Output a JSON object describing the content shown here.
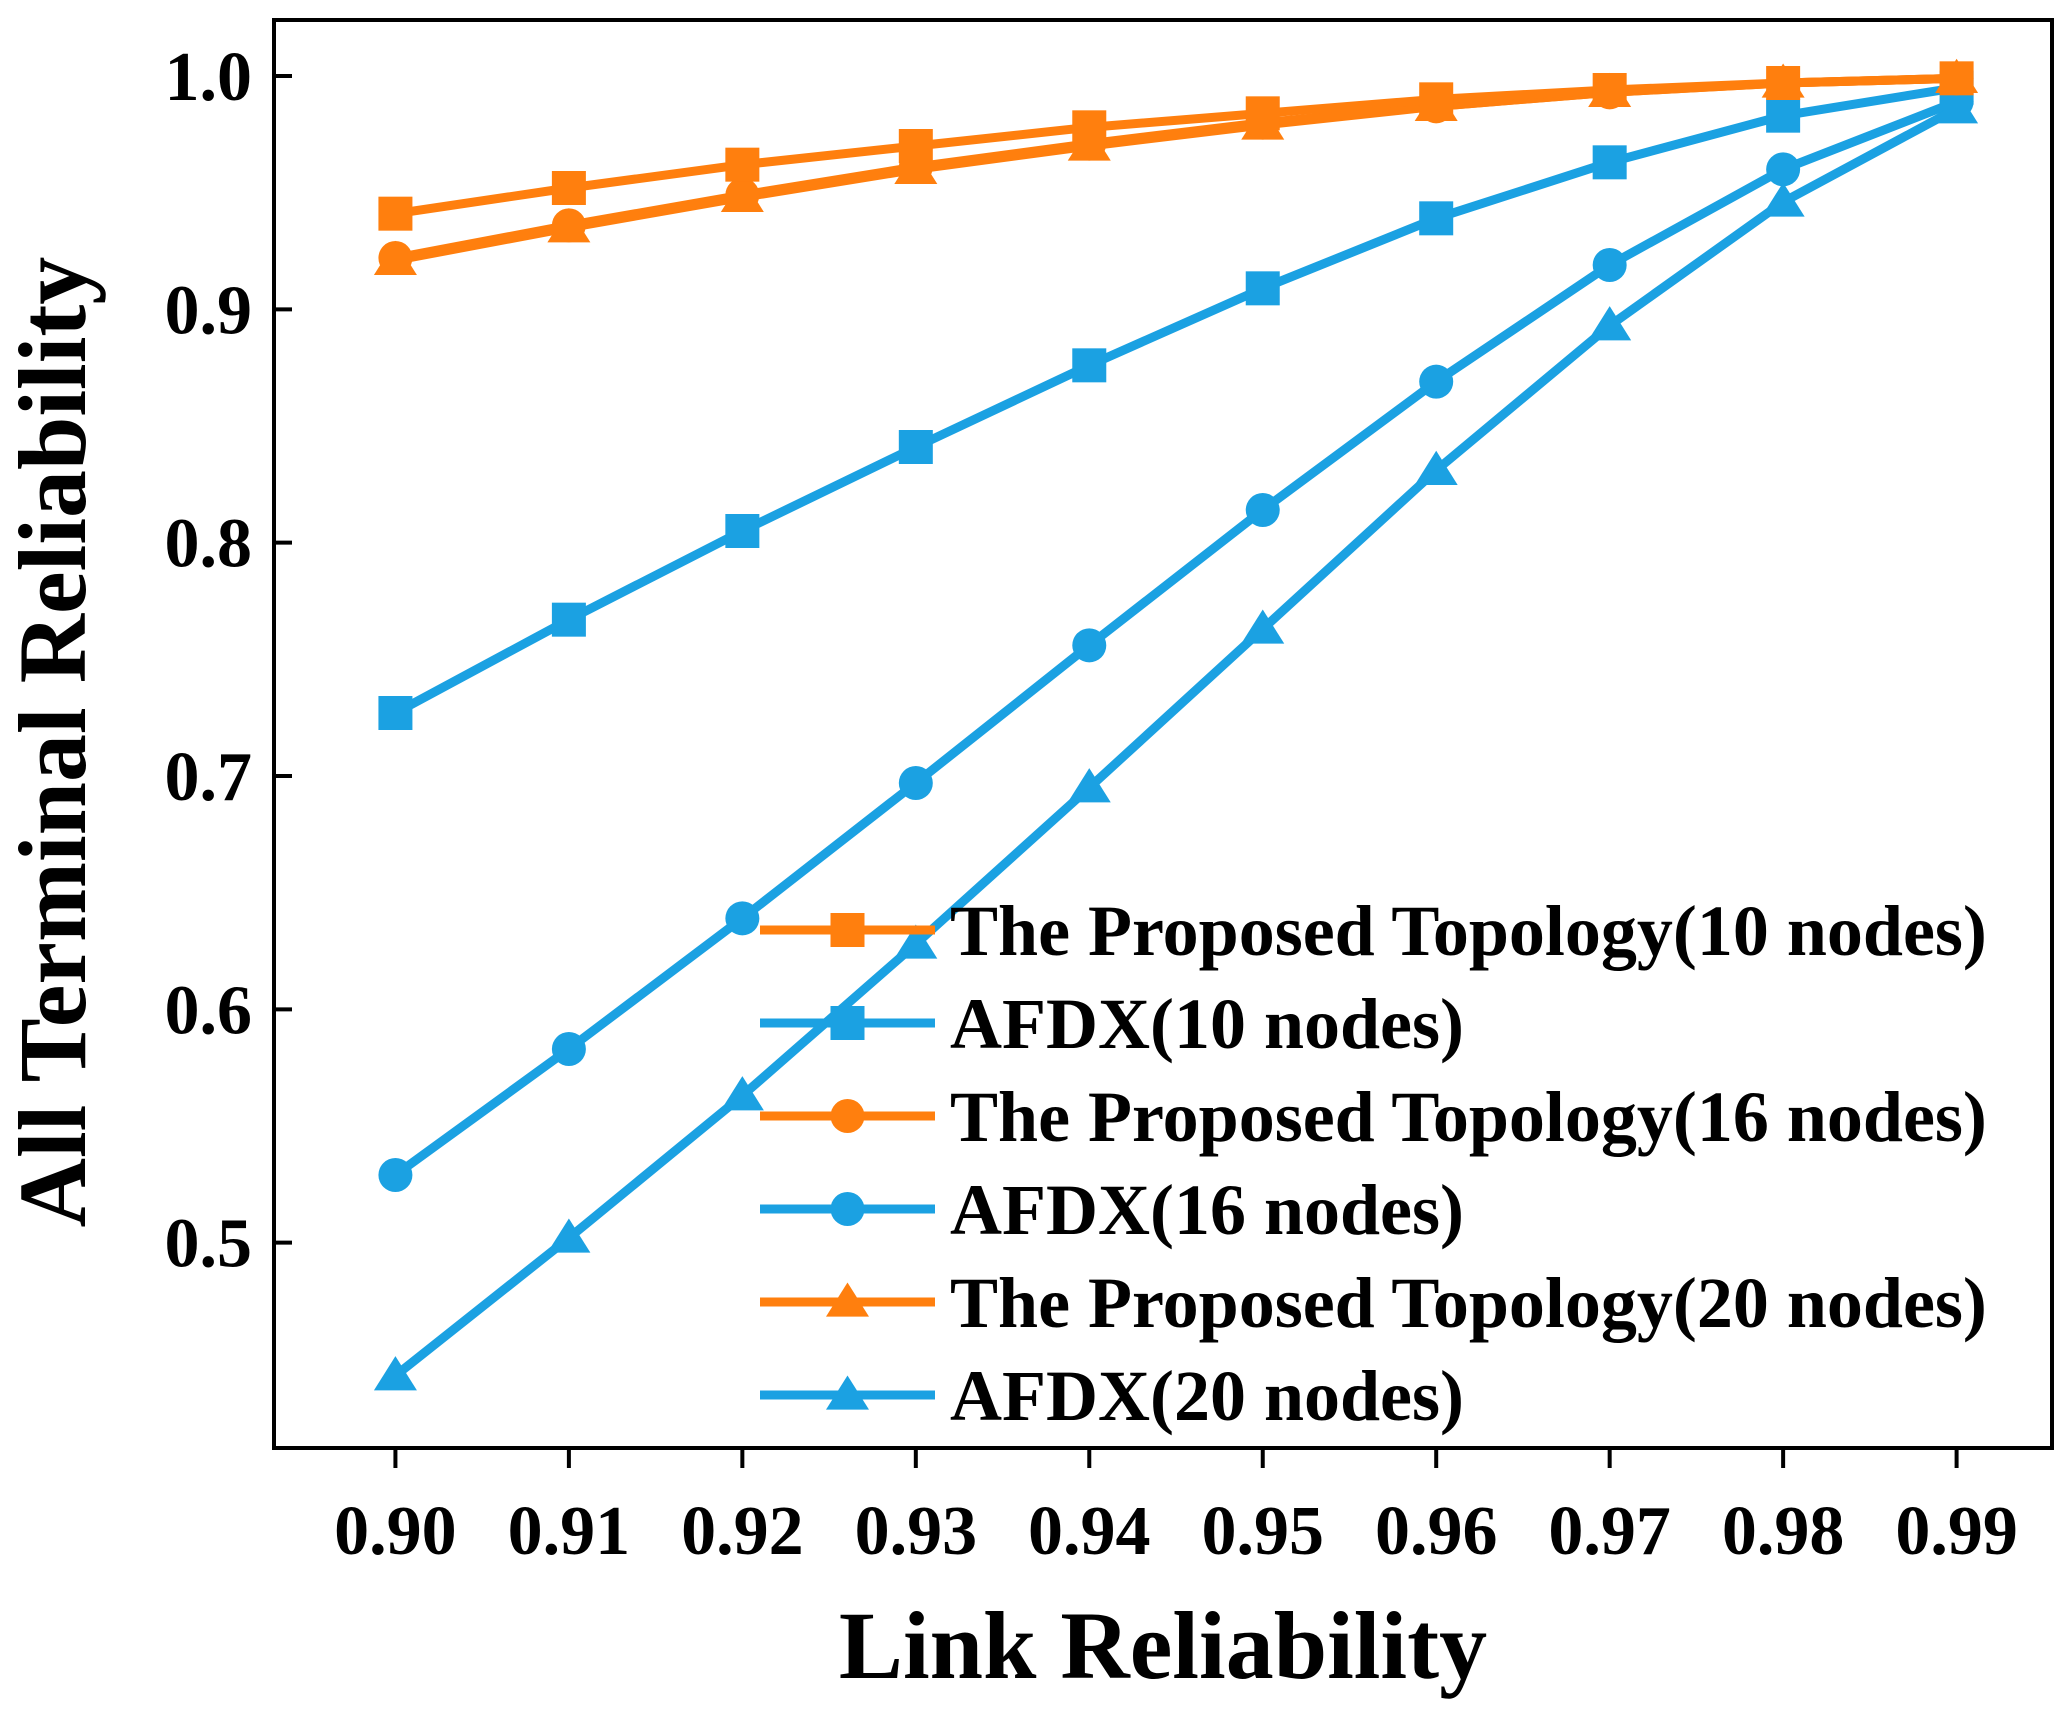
{
  "chart_data": {
    "type": "line",
    "title": "",
    "xlabel": "Link Reliability",
    "ylabel": "All Terminal Reliability",
    "x": [
      0.9,
      0.91,
      0.92,
      0.93,
      0.94,
      0.95,
      0.96,
      0.97,
      0.98,
      0.99
    ],
    "x_tick_labels": [
      "0.90",
      "0.91",
      "0.92",
      "0.93",
      "0.94",
      "0.95",
      "0.96",
      "0.97",
      "0.98",
      "0.99"
    ],
    "y_ticks": [
      0.5,
      0.6,
      0.7,
      0.8,
      0.9,
      1.0
    ],
    "y_tick_labels": [
      "0.5",
      "0.6",
      "0.7",
      "0.8",
      "0.9",
      "1.0"
    ],
    "xlim": [
      0.893,
      0.9955
    ],
    "ylim": [
      0.412,
      1.024
    ],
    "grid": false,
    "legend_position": "bottom-right",
    "series": [
      {
        "name": "The Proposed Topology(10 nodes)",
        "color": "#ff7f0e",
        "marker": "square",
        "values": [
          0.941,
          0.952,
          0.962,
          0.97,
          0.978,
          0.984,
          0.99,
          0.994,
          0.997,
          0.999
        ]
      },
      {
        "name": "AFDX(10 nodes)",
        "color": "#1ba1e2",
        "marker": "square",
        "values": [
          0.727,
          0.767,
          0.805,
          0.841,
          0.876,
          0.909,
          0.939,
          0.963,
          0.983,
          0.995
        ]
      },
      {
        "name": "The Proposed Topology(16 nodes)",
        "color": "#ff7f0e",
        "marker": "circle",
        "values": [
          0.922,
          0.936,
          0.949,
          0.961,
          0.971,
          0.98,
          0.987,
          0.993,
          0.997,
          0.999
        ]
      },
      {
        "name": "AFDX(16 nodes)",
        "color": "#1ba1e2",
        "marker": "circle",
        "values": [
          0.529,
          0.583,
          0.639,
          0.697,
          0.756,
          0.814,
          0.869,
          0.919,
          0.96,
          0.989
        ]
      },
      {
        "name": "The Proposed Topology(20 nodes)",
        "color": "#ff7f0e",
        "marker": "triangle",
        "values": [
          0.921,
          0.935,
          0.948,
          0.96,
          0.97,
          0.979,
          0.987,
          0.993,
          0.997,
          0.999
        ]
      },
      {
        "name": "AFDX(20 nodes)",
        "color": "#1ba1e2",
        "marker": "triangle",
        "values": [
          0.443,
          0.502,
          0.563,
          0.628,
          0.695,
          0.763,
          0.831,
          0.893,
          0.946,
          0.986
        ]
      }
    ]
  }
}
